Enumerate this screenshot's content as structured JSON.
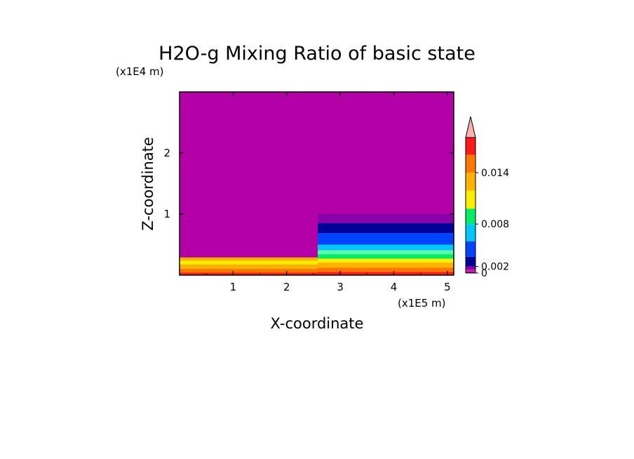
{
  "chart_data": {
    "type": "heatmap",
    "title": "H2O-g Mixing Ratio of basic state",
    "xlabel": "X-coordinate",
    "ylabel": "Z-coordinate",
    "x_unit": "(x1E5 m)",
    "y_unit": "(x1E4 m)",
    "xlim": [
      0,
      5.12
    ],
    "ylim": [
      0,
      3.0
    ],
    "x_ticks": [
      "1",
      "2",
      "3",
      "4",
      "5"
    ],
    "y_ticks": [
      "1",
      "2"
    ],
    "levels": [
      0,
      0.0005,
      0.001,
      0.002,
      0.004,
      0.006,
      0.008,
      0.01,
      0.012,
      0.014,
      0.016,
      0.018
    ],
    "colorbar_labels": [
      {
        "value": 0,
        "label": "0"
      },
      {
        "value": 0.002,
        "label": "0.002"
      },
      {
        "value": 0.008,
        "label": "0.008"
      },
      {
        "value": 0.014,
        "label": "0.014"
      }
    ],
    "colors": [
      "#b300a6",
      "#d02090",
      "#8800aa",
      "#000099",
      "#0044ff",
      "#00c8ff",
      "#00ee66",
      "#ffee00",
      "#ffb300",
      "#ff7700",
      "#ff1a1a",
      "#ffb0b0"
    ],
    "field_bands": [
      {
        "x0": 0.0,
        "x1": 2.58,
        "z0": 0.0,
        "z1": 0.04,
        "color": "#ff1a1a"
      },
      {
        "x0": 0.0,
        "x1": 2.58,
        "z0": 0.04,
        "z1": 0.1,
        "color": "#ff7700"
      },
      {
        "x0": 0.0,
        "x1": 2.58,
        "z0": 0.1,
        "z1": 0.17,
        "color": "#ffb300"
      },
      {
        "x0": 0.0,
        "x1": 2.58,
        "z0": 0.17,
        "z1": 0.24,
        "color": "#ffee00"
      },
      {
        "x0": 0.0,
        "x1": 2.58,
        "z0": 0.24,
        "z1": 0.29,
        "color": "#ffb300"
      },
      {
        "x0": 2.58,
        "x1": 5.12,
        "z0": 0.0,
        "z1": 0.05,
        "color": "#ff1a1a"
      },
      {
        "x0": 2.58,
        "x1": 5.12,
        "z0": 0.05,
        "z1": 0.12,
        "color": "#ff7700"
      },
      {
        "x0": 2.58,
        "x1": 5.12,
        "z0": 0.12,
        "z1": 0.2,
        "color": "#ffb300"
      },
      {
        "x0": 2.58,
        "x1": 5.12,
        "z0": 0.2,
        "z1": 0.27,
        "color": "#ffee00"
      },
      {
        "x0": 2.58,
        "x1": 5.12,
        "z0": 0.27,
        "z1": 0.34,
        "color": "#00ee66"
      },
      {
        "x0": 2.58,
        "x1": 5.12,
        "z0": 0.34,
        "z1": 0.41,
        "color": "#55ffaa"
      },
      {
        "x0": 2.58,
        "x1": 5.12,
        "z0": 0.41,
        "z1": 0.5,
        "color": "#00c8ff"
      },
      {
        "x0": 2.58,
        "x1": 5.12,
        "z0": 0.5,
        "z1": 0.69,
        "color": "#0044ff"
      },
      {
        "x0": 2.58,
        "x1": 5.12,
        "z0": 0.69,
        "z1": 0.85,
        "color": "#000099"
      },
      {
        "x0": 2.58,
        "x1": 5.12,
        "z0": 0.85,
        "z1": 1.0,
        "color": "#8800aa"
      }
    ],
    "background_color": "#b300a6",
    "grid": false
  }
}
